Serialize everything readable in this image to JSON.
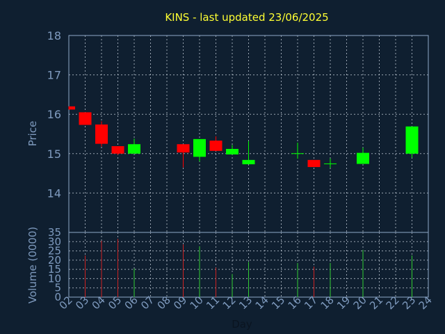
{
  "chart_data": {
    "type": "candlestick",
    "title": "KINS - last updated 23/06/2025",
    "xlabel": "Day",
    "price_panel": {
      "ylabel": "Price",
      "ylim": [
        13.0,
        18.0
      ],
      "yticks": [
        14,
        15,
        16,
        17,
        18
      ],
      "grid": true
    },
    "volume_panel": {
      "ylabel": "Volume (0000)",
      "ylim": [
        0,
        35
      ],
      "yticks": [
        0,
        5,
        10,
        15,
        20,
        25,
        30,
        35
      ],
      "grid": true
    },
    "x_ticks": [
      "02",
      "03",
      "04",
      "05",
      "06",
      "07",
      "08",
      "09",
      "10",
      "11",
      "12",
      "13",
      "14",
      "15",
      "16",
      "17",
      "18",
      "19",
      "20",
      "21",
      "22",
      "23",
      "24"
    ],
    "candles": [
      {
        "day": "02",
        "open": 16.2,
        "close": 16.12,
        "high": 16.2,
        "low": 16.12,
        "volume": 0
      },
      {
        "day": "03",
        "open": 16.05,
        "close": 15.73,
        "high": 16.05,
        "low": 15.73,
        "volume": 22.5
      },
      {
        "day": "04",
        "open": 15.74,
        "close": 15.25,
        "high": 15.82,
        "low": 15.18,
        "volume": 30.5
      },
      {
        "day": "05",
        "open": 15.19,
        "close": 15.0,
        "high": 15.19,
        "low": 14.97,
        "volume": 31.5
      },
      {
        "day": "06",
        "open": 15.0,
        "close": 15.24,
        "high": 15.38,
        "low": 15.0,
        "volume": 15.5
      },
      {
        "day": "09",
        "open": 15.24,
        "close": 15.03,
        "high": 15.24,
        "low": 14.65,
        "volume": 28.5
      },
      {
        "day": "10",
        "open": 14.92,
        "close": 15.37,
        "high": 15.37,
        "low": 14.8,
        "volume": 27.5
      },
      {
        "day": "11",
        "open": 15.33,
        "close": 15.07,
        "high": 15.44,
        "low": 15.07,
        "volume": 16.0
      },
      {
        "day": "12",
        "open": 14.98,
        "close": 15.12,
        "high": 15.22,
        "low": 14.98,
        "volume": 12.5
      },
      {
        "day": "13",
        "open": 14.73,
        "close": 14.84,
        "high": 15.32,
        "low": 14.73,
        "volume": 19.0
      },
      {
        "day": "16",
        "open": 15.0,
        "close": 15.01,
        "high": 15.28,
        "low": 14.87,
        "volume": 18.5
      },
      {
        "day": "17",
        "open": 14.84,
        "close": 14.66,
        "high": 14.84,
        "low": 14.66,
        "volume": 16.5
      },
      {
        "day": "18",
        "open": 14.74,
        "close": 14.75,
        "high": 14.88,
        "low": 14.64,
        "volume": 18.5
      },
      {
        "day": "20",
        "open": 14.74,
        "close": 15.02,
        "high": 15.15,
        "low": 14.74,
        "volume": 25.5
      },
      {
        "day": "23",
        "open": 15.0,
        "close": 15.69,
        "high": 15.69,
        "low": 14.9,
        "volume": 22.5
      }
    ],
    "colors": {
      "up": "#00ff00",
      "down": "#ff0000",
      "volume_up": "#33cc33",
      "volume_down": "#cc2222",
      "title": "#ffff33",
      "axis_text": "#7f9bbf",
      "frame": "#8fa8c8",
      "grid": "#c8d2dc",
      "background": "#0f1f30",
      "day_label": "#0a1420"
    }
  }
}
